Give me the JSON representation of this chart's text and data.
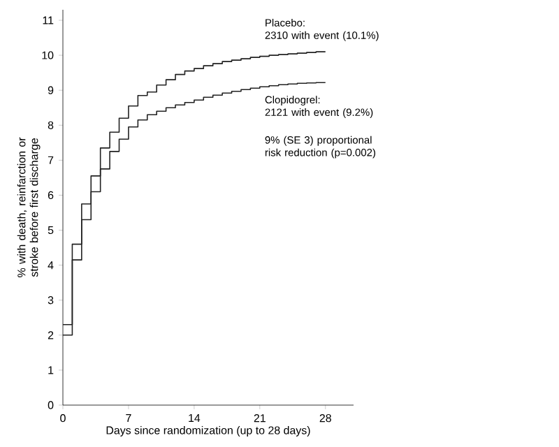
{
  "chart_data": {
    "type": "step",
    "xlabel": "Days since randomization (up to 28 days)",
    "ylabel": "% with death, reinfarction or stroke before first discharge",
    "x": [
      0,
      1,
      2,
      3,
      4,
      5,
      6,
      7,
      8,
      9,
      10,
      11,
      12,
      13,
      14,
      15,
      16,
      17,
      18,
      19,
      20,
      21,
      22,
      23,
      24,
      25,
      26,
      27,
      28
    ],
    "series": [
      {
        "name": "Placebo:",
        "color": "#222222",
        "values": [
          2.3,
          4.6,
          5.75,
          6.55,
          7.35,
          7.8,
          8.2,
          8.55,
          8.85,
          8.95,
          9.15,
          9.3,
          9.45,
          9.55,
          9.62,
          9.7,
          9.76,
          9.82,
          9.86,
          9.9,
          9.94,
          9.97,
          10.0,
          10.02,
          10.04,
          10.06,
          10.08,
          10.1,
          10.1
        ]
      },
      {
        "name": "Clopidogrel:",
        "color": "#222222",
        "values": [
          2.0,
          4.15,
          5.3,
          6.1,
          6.75,
          7.25,
          7.6,
          7.95,
          8.15,
          8.3,
          8.4,
          8.5,
          8.58,
          8.65,
          8.72,
          8.8,
          8.86,
          8.92,
          8.97,
          9.02,
          9.06,
          9.1,
          9.13,
          9.16,
          9.18,
          9.2,
          9.21,
          9.22,
          9.22
        ]
      }
    ],
    "annotations": [
      "2310 with event (10.1%)",
      "2121 with event (9.2%)",
      "9% (SE 3) proportional risk reduction (p=0.002)"
    ],
    "xlim": [
      0,
      31
    ],
    "ylim": [
      0,
      11.3
    ],
    "xticks": [
      0,
      7,
      14,
      21,
      28
    ],
    "yticks": [
      0,
      1,
      2,
      3,
      4,
      5,
      6,
      7,
      8,
      9,
      10,
      11
    ],
    "grid": false,
    "marker": "none",
    "line_style": "solid"
  }
}
